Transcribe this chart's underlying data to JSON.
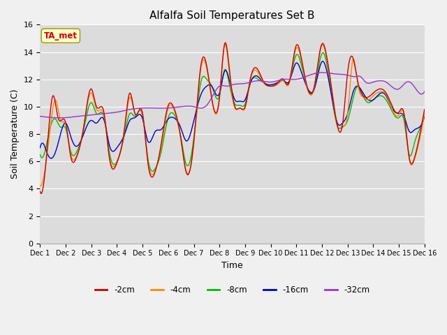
{
  "title": "Alfalfa Soil Temperatures Set B",
  "xlabel": "Time",
  "ylabel": "Soil Temperature (C)",
  "ylim": [
    0,
    16
  ],
  "yticks": [
    0,
    2,
    4,
    6,
    8,
    10,
    12,
    14,
    16
  ],
  "x_tick_labels": [
    "Dec 1",
    "Dec 2",
    "Dec 3",
    "Dec 4",
    "Dec 5",
    "Dec 6",
    "Dec 7",
    "Dec 8",
    "Dec 9",
    "Dec 10",
    "Dec 11",
    "Dec 12",
    "Dec 13",
    "Dec 14",
    "Dec 15",
    "Dec 16"
  ],
  "series_colors": {
    "-2cm": "#cc0000",
    "-4cm": "#ff8800",
    "-8cm": "#00bb00",
    "-16cm": "#0000cc",
    "-32cm": "#9933cc"
  },
  "bg_color": "#dcdcdc",
  "fig_bg_color": "#f0f0f0",
  "ta_met_box_color": "#ffffcc",
  "ta_met_text_color": "#cc0000",
  "ta_met_edge_color": "#999900"
}
